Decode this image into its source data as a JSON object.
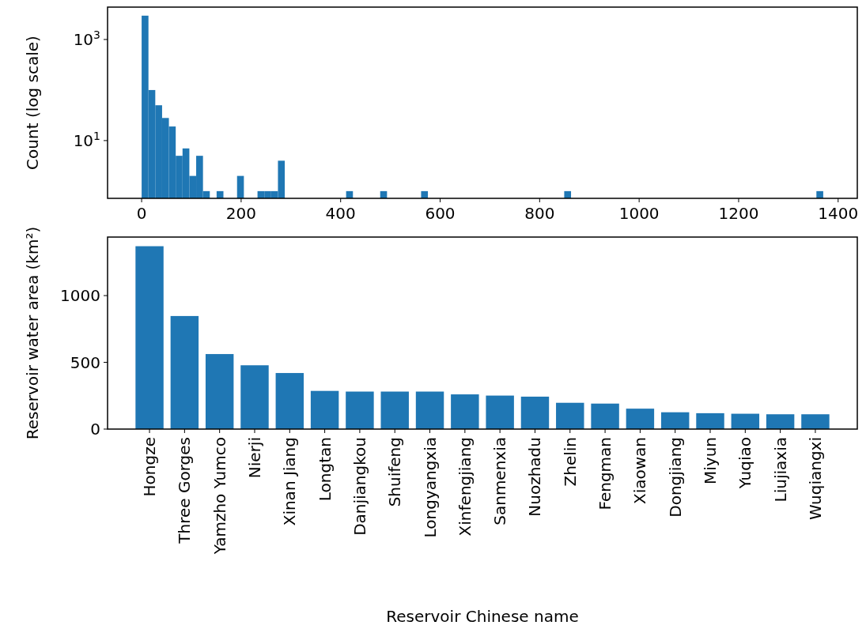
{
  "chart_data": [
    {
      "type": "histogram",
      "ylabel": "Count  (log scale)",
      "log": true,
      "color": "#1f77b4",
      "bins": [
        0,
        13.7,
        27.4,
        41.1,
        54.8,
        68.5,
        82.2,
        95.9,
        109.6,
        123.3,
        137,
        150.7,
        164.4,
        178.1,
        191.8,
        205.5,
        219.2,
        232.9,
        246.6,
        260.3,
        274,
        287.7,
        301.4,
        315.1,
        328.8,
        342.5,
        356.2,
        369.9,
        383.6,
        397.3,
        411,
        424.7,
        438.4,
        452.1,
        465.8,
        479.5,
        493.2,
        506.9,
        520.6,
        534.3,
        548,
        561.7,
        575.4,
        589.1,
        602.8,
        616.5,
        630.2,
        643.9,
        657.6,
        671.3,
        685,
        698.7,
        712.4,
        726.1,
        739.8,
        753.5,
        767.2,
        780.9,
        794.6,
        808.3,
        822,
        835.7,
        849.4,
        863.1,
        876.8,
        890.5,
        904.2,
        917.9,
        931.6,
        945.3,
        959,
        972.7,
        986.4,
        1000.1,
        1013.8,
        1027.5,
        1041.2,
        1054.9,
        1068.6,
        1082.3,
        1096,
        1109.7,
        1123.4,
        1137.1,
        1150.8,
        1164.5,
        1178.2,
        1191.9,
        1205.6,
        1219.3,
        1233,
        1246.7,
        1260.4,
        1274.1,
        1287.8,
        1301.5,
        1315.2,
        1328.9,
        1342.6,
        1356.3,
        1370
      ],
      "values": [
        2960,
        100,
        50,
        28,
        19,
        5,
        7,
        2,
        5,
        1,
        null,
        1,
        null,
        null,
        2,
        null,
        null,
        1,
        1,
        1,
        4,
        null,
        null,
        null,
        null,
        null,
        null,
        null,
        null,
        null,
        1,
        null,
        null,
        null,
        null,
        1,
        null,
        null,
        null,
        null,
        null,
        1,
        null,
        null,
        null,
        null,
        null,
        null,
        null,
        null,
        null,
        null,
        null,
        null,
        null,
        null,
        null,
        null,
        null,
        null,
        null,
        null,
        1,
        null,
        null,
        null,
        null,
        null,
        null,
        null,
        null,
        null,
        null,
        null,
        null,
        null,
        null,
        null,
        null,
        null,
        null,
        null,
        null,
        null,
        null,
        null,
        null,
        null,
        null,
        null,
        null,
        null,
        null,
        null,
        null,
        null,
        null,
        null,
        null,
        1
      ],
      "xlim": [
        -68.5,
        1438.5
      ],
      "xticks": [
        0,
        200,
        400,
        600,
        800,
        1000,
        1200,
        1400
      ],
      "ylim": [
        0.72,
        4370
      ],
      "yticks": [
        {
          "value": 10,
          "label": "10$^{1}$"
        },
        {
          "value": 1000,
          "label": "10$^{3}$"
        }
      ]
    },
    {
      "type": "bar",
      "xlabel": "Reservoir Chinese name",
      "ylabel": "Reservoir water area (km²)",
      "color": "#1f77b4",
      "categories": [
        "Hongze",
        "Three Gorges",
        "Yamzho Yumco",
        "Nierji",
        "Xinan Jiang",
        "Longtan",
        "Danjiangkou",
        "Shuifeng",
        "Longyangxia",
        "Xinfengjiang",
        "Sanmenxia",
        "Nuozhadu",
        "Zhelin",
        "Fengman",
        "Xiaowan",
        "Dongjiang",
        "Miyun",
        "Yuqiao",
        "Liujiaxia",
        "Wuqiangxi"
      ],
      "values": [
        1370,
        847,
        562,
        478,
        420,
        286,
        281,
        281,
        281,
        260,
        251,
        243,
        197,
        191,
        153,
        126,
        119,
        115,
        111,
        111
      ],
      "ylim": [
        0,
        1438.5
      ],
      "yticks": [
        0,
        500,
        1000
      ]
    }
  ]
}
